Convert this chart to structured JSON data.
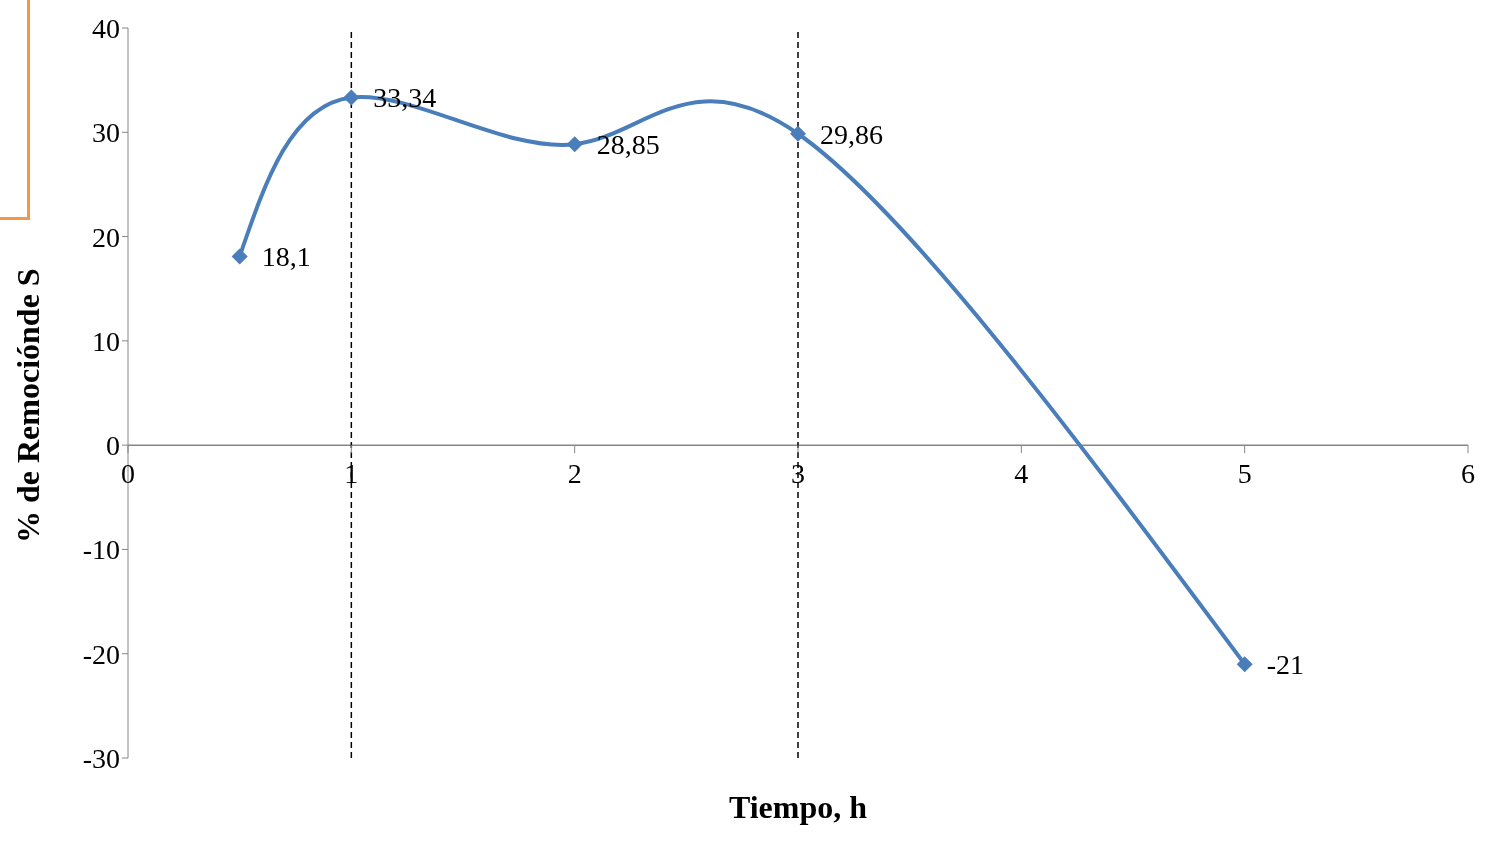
{
  "chart_data": {
    "type": "line",
    "xlabel": "Tiempo, h",
    "ylabel": "% de Remociónde S",
    "x": [
      0.5,
      1,
      2,
      3,
      5
    ],
    "series": [
      {
        "color": "#4a7ebb",
        "values": [
          18.1,
          33.34,
          28.85,
          29.86,
          -21
        ],
        "value_labels": [
          "18,1",
          "33,34",
          "28,85",
          "29,86",
          "-21"
        ]
      }
    ],
    "xlim": [
      0,
      6
    ],
    "xticks": [
      0,
      1,
      2,
      3,
      4,
      5,
      6
    ],
    "ylim": [
      -30,
      40
    ],
    "yticks": [
      -30,
      -20,
      -10,
      0,
      10,
      20,
      30,
      40
    ],
    "ref_lines": [
      {
        "axis": "x",
        "value": 1,
        "color": "#000000",
        "line_style": "dashed"
      },
      {
        "axis": "x",
        "value": 3,
        "color": "#000000",
        "line_style": "dashed"
      }
    ],
    "marker": "diamond",
    "line_style": "solid"
  }
}
